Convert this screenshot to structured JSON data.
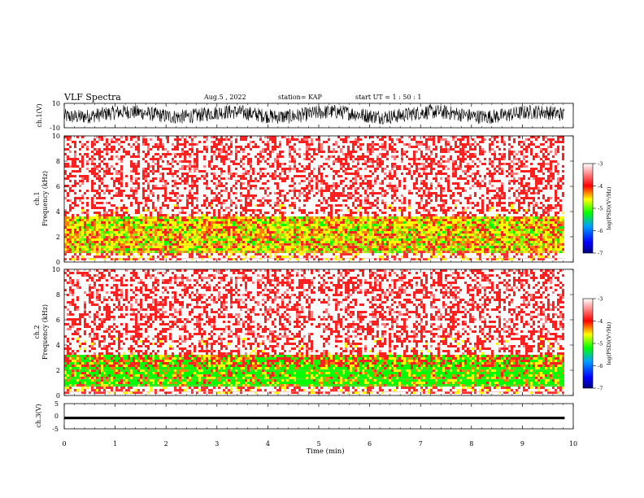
{
  "header": {
    "title": "VLF Spectra",
    "date": "Aug.5 , 2022",
    "station": "station= KAP",
    "start_ut": "start UT = 1 : 50 : 1"
  },
  "chart_data": [
    {
      "type": "line",
      "panel": "ch1-waveform",
      "ylabel": "ch.1(V)",
      "ylim": [
        -10,
        10
      ],
      "y_ticks": [
        "10",
        "-10"
      ],
      "description_series": "dense noisy waveform oscillating roughly between -5 and 7 V",
      "color": "#000000"
    },
    {
      "type": "heatmap",
      "panel": "ch1-spectrogram",
      "ylabel": "ch.1\nFrequency (kHz)",
      "ylabel_line1": "ch.1",
      "ylabel_line2": "Frequency (kHz)",
      "ylim": [
        0,
        10
      ],
      "y_ticks": [
        "0",
        "2",
        "4",
        "6",
        "8",
        "10"
      ],
      "xlim": [
        0,
        10
      ],
      "data_extent_min": 9.83,
      "colorbar": {
        "label": "log(PSD)(V²/Hz)",
        "range": [
          -7,
          -3
        ],
        "ticks": [
          "-3",
          "-4",
          "-5",
          "-6",
          "-7"
        ],
        "colors": [
          "#000080",
          "#0000ff",
          "#00a0ff",
          "#00ff00",
          "#ffff00",
          "#ff0000",
          "#ffffff"
        ]
      },
      "bands": [
        {
          "from_khz": 0,
          "to_khz": 0.5,
          "level": "mixed"
        },
        {
          "from_khz": 0.5,
          "to_khz": 3.5,
          "level": "high (yellow/green)"
        },
        {
          "from_khz": 3.5,
          "to_khz": 10,
          "level": "medium (red/white)"
        }
      ]
    },
    {
      "type": "heatmap",
      "panel": "ch2-spectrogram",
      "ylabel_line1": "ch.2",
      "ylabel_line2": "Frequency (kHz)",
      "ylim": [
        0,
        10
      ],
      "y_ticks": [
        "0",
        "2",
        "4",
        "6",
        "8",
        "10"
      ],
      "xlim": [
        0,
        10
      ],
      "data_extent_min": 9.83,
      "colorbar": {
        "label": "log(PSD)(V²/Hz)",
        "range": [
          -7,
          -3
        ],
        "ticks": [
          "-3",
          "-4",
          "-5",
          "-6",
          "-7"
        ]
      },
      "bands": [
        {
          "from_khz": 0,
          "to_khz": 3,
          "level": "high (green/yellow)"
        },
        {
          "from_khz": 3,
          "to_khz": 10,
          "level": "medium (red/white)"
        }
      ]
    },
    {
      "type": "line",
      "panel": "ch3-waveform",
      "ylabel": "ch.3(V)",
      "ylim": [
        -5,
        5
      ],
      "y_ticks": [
        "5",
        "0",
        "-5"
      ],
      "color": "#000000",
      "band_range": [
        -1.2,
        -0.2
      ],
      "xlabel": "Time (min)",
      "xlim": [
        0,
        10
      ],
      "x_ticks": [
        "0",
        "1",
        "2",
        "3",
        "4",
        "5",
        "6",
        "7",
        "8",
        "9",
        "10"
      ]
    }
  ]
}
